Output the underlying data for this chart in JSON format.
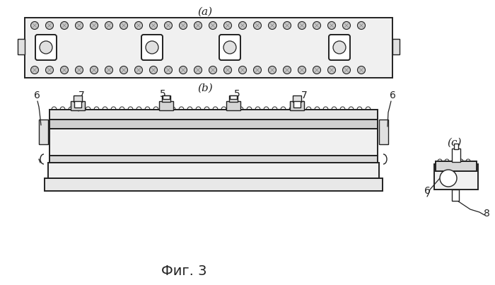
{
  "bg_color": "#ffffff",
  "lc": "#222222",
  "fig_title": "Фиг. 3",
  "label_a": "(a)",
  "label_b": "(b)",
  "label_c": "(c)",
  "n5": "5",
  "n6": "6",
  "n7": "7",
  "n8": "8"
}
